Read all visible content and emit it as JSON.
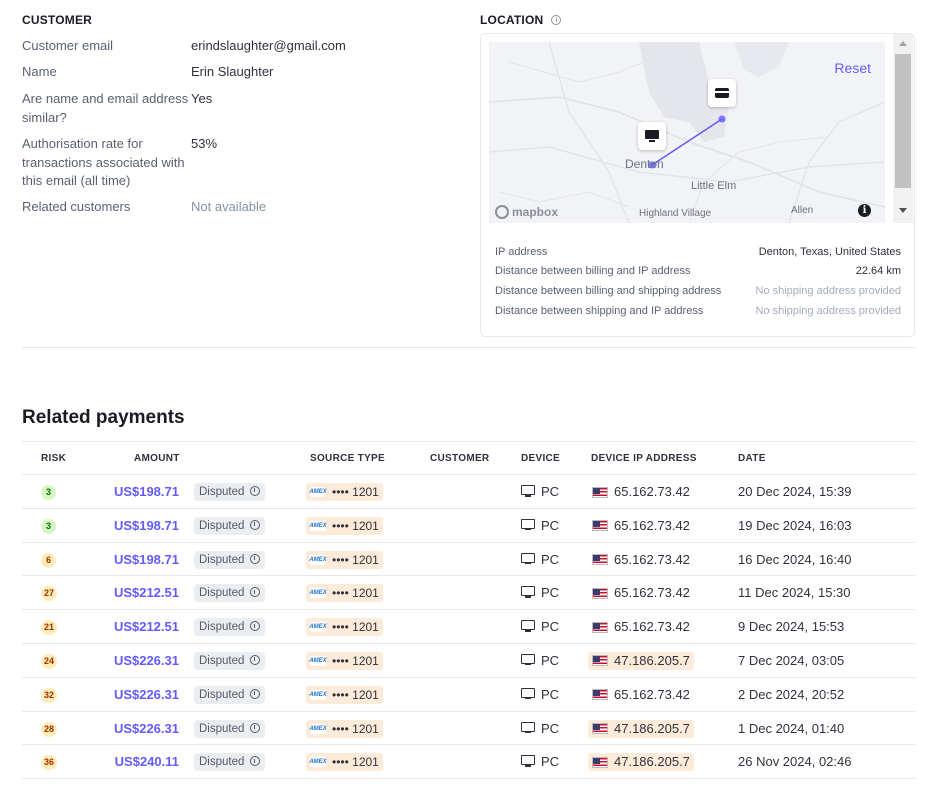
{
  "customer": {
    "title": "CUSTOMER",
    "fields": [
      {
        "label": "Customer email",
        "value": "erindslaughter@gmail.com"
      },
      {
        "label": "Name",
        "value": "Erin Slaughter"
      },
      {
        "label": "Are name and email address similar?",
        "value": "Yes"
      },
      {
        "label": "Authorisation rate for transactions associated with this email (all time)",
        "value": "53%"
      },
      {
        "label": "Related customers",
        "value": "Not available"
      }
    ]
  },
  "location": {
    "title": "LOCATION",
    "map": {
      "reset_label": "Reset",
      "places": [
        "Denton",
        "Little Elm",
        "Highland Village",
        "Allen"
      ],
      "logo": "mapbox",
      "info_glyph": "i",
      "pins": [
        "monitor-icon",
        "card-icon"
      ]
    },
    "rows": [
      {
        "label": "IP address",
        "value": "Denton, Texas, United States"
      },
      {
        "label": "Distance between billing and IP address",
        "value": "22.64 km"
      },
      {
        "label": "Distance between billing and shipping address",
        "value": "No shipping address provided"
      },
      {
        "label": "Distance between shipping and IP address",
        "value": "No shipping address provided"
      }
    ]
  },
  "related_payments": {
    "title": "Related payments",
    "columns": [
      "RISK",
      "AMOUNT",
      "SOURCE TYPE",
      "CUSTOMER",
      "DEVICE",
      "DEVICE IP ADDRESS",
      "DATE"
    ],
    "rows": [
      {
        "risk": "3",
        "risk_level": "low",
        "amount": "US$198.71",
        "status": "Disputed",
        "card_brand": "AMEX",
        "card": "•••• 1201",
        "device": "PC",
        "ip": "65.162.73.42",
        "ip_highlight": false,
        "date": "20 Dec 2024, 15:39"
      },
      {
        "risk": "3",
        "risk_level": "low",
        "amount": "US$198.71",
        "status": "Disputed",
        "card_brand": "AMEX",
        "card": "•••• 1201",
        "device": "PC",
        "ip": "65.162.73.42",
        "ip_highlight": false,
        "date": "19 Dec 2024, 16:03"
      },
      {
        "risk": "6",
        "risk_level": "mid",
        "amount": "US$198.71",
        "status": "Disputed",
        "card_brand": "AMEX",
        "card": "•••• 1201",
        "device": "PC",
        "ip": "65.162.73.42",
        "ip_highlight": false,
        "date": "16 Dec 2024, 16:40"
      },
      {
        "risk": "27",
        "risk_level": "mid",
        "amount": "US$212.51",
        "status": "Disputed",
        "card_brand": "AMEX",
        "card": "•••• 1201",
        "device": "PC",
        "ip": "65.162.73.42",
        "ip_highlight": false,
        "date": "11 Dec 2024, 15:30"
      },
      {
        "risk": "21",
        "risk_level": "mid",
        "amount": "US$212.51",
        "status": "Disputed",
        "card_brand": "AMEX",
        "card": "•••• 1201",
        "device": "PC",
        "ip": "65.162.73.42",
        "ip_highlight": false,
        "date": "9 Dec 2024, 15:53"
      },
      {
        "risk": "24",
        "risk_level": "mid",
        "amount": "US$226.31",
        "status": "Disputed",
        "card_brand": "AMEX",
        "card": "•••• 1201",
        "device": "PC",
        "ip": "47.186.205.7",
        "ip_highlight": true,
        "date": "7 Dec 2024, 03:05"
      },
      {
        "risk": "32",
        "risk_level": "mid",
        "amount": "US$226.31",
        "status": "Disputed",
        "card_brand": "AMEX",
        "card": "•••• 1201",
        "device": "PC",
        "ip": "65.162.73.42",
        "ip_highlight": false,
        "date": "2 Dec 2024, 20:52"
      },
      {
        "risk": "28",
        "risk_level": "mid",
        "amount": "US$226.31",
        "status": "Disputed",
        "card_brand": "AMEX",
        "card": "•••• 1201",
        "device": "PC",
        "ip": "47.186.205.7",
        "ip_highlight": true,
        "date": "1 Dec 2024, 01:40"
      },
      {
        "risk": "36",
        "risk_level": "mid",
        "amount": "US$240.11",
        "status": "Disputed",
        "card_brand": "AMEX",
        "card": "•••• 1201",
        "device": "PC",
        "ip": "47.186.205.7",
        "ip_highlight": true,
        "date": "26 Nov 2024, 02:46"
      }
    ]
  },
  "colors": {
    "accent": "#635bff",
    "risk_low": "#d7f7c2",
    "risk_mid": "#fcedb9",
    "highlight": "#fcebd9"
  }
}
